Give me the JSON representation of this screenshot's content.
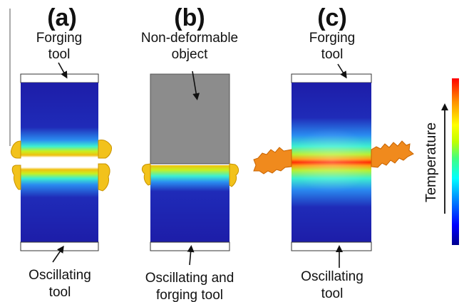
{
  "panels": [
    {
      "id": "a",
      "letter": "(a)",
      "top_label": [
        "Forging",
        "tool"
      ],
      "bottom_label": [
        "Oscillating",
        "tool"
      ]
    },
    {
      "id": "b",
      "letter": "(b)",
      "top_label": [
        "Non-deformable",
        "object"
      ],
      "bottom_label": [
        "Oscillating and",
        "forging tool"
      ]
    },
    {
      "id": "c",
      "letter": "(c)",
      "top_label": [
        "Forging",
        "tool"
      ],
      "bottom_label": [
        "Oscillating",
        "tool"
      ]
    }
  ],
  "colorbar": {
    "label": "Temperature",
    "colors": [
      "#00008f",
      "#0000ff",
      "#00a0ff",
      "#00ffff",
      "#40ff80",
      "#c0ff00",
      "#ffff00",
      "#ff9000",
      "#ff0000"
    ]
  },
  "colors": {
    "block_blue": "#1a1aa6",
    "tool_fill": "#ffffff",
    "object_gray": "#8c8c8c",
    "flash_yellow": "#f2c21b",
    "flash_orange": "#f08a1d",
    "hot_band": "#ff2a00"
  }
}
